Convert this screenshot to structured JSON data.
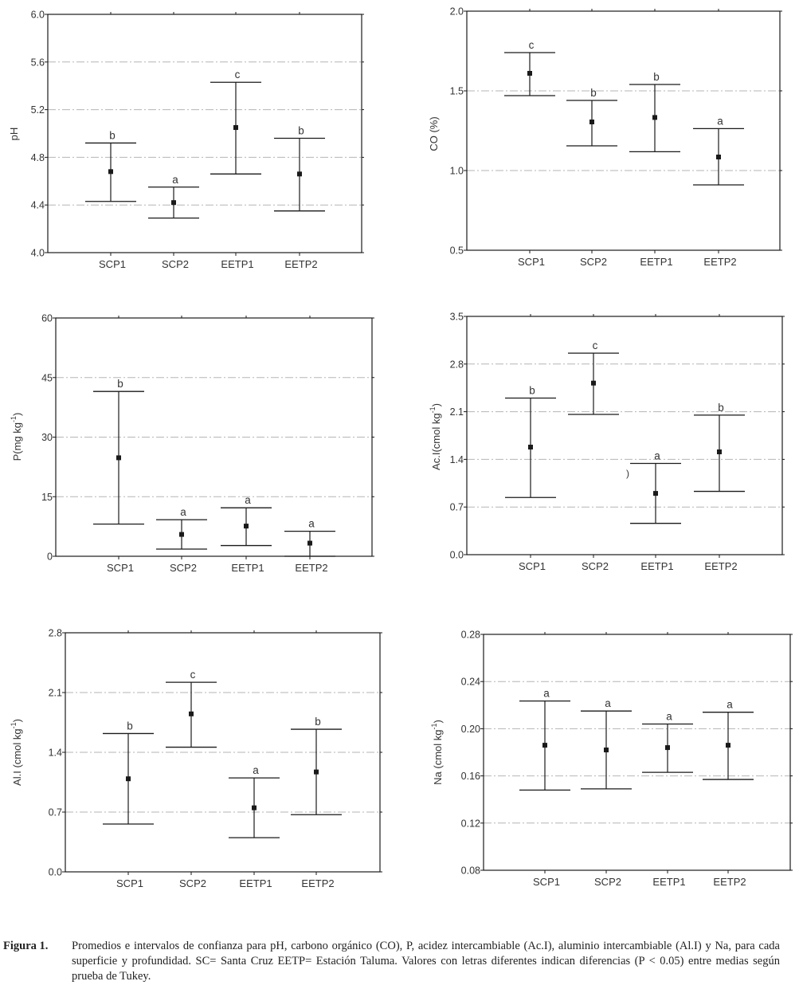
{
  "chart_data": [
    {
      "type": "errorbar",
      "id": "ph",
      "title": "",
      "xlabel": "",
      "ylabel": "pH",
      "ylabel_sup": "",
      "ylabel_suffix": "",
      "ylim": [
        4.0,
        6.0
      ],
      "yticks": [
        "4.0",
        "4.4",
        "4.8",
        "5.2",
        "5.6",
        "6.0"
      ],
      "ytick_values": [
        4.0,
        4.4,
        4.8,
        5.2,
        5.6,
        6.0
      ],
      "grid": true,
      "categories": [
        "SCP1",
        "SCP2",
        "EETP1",
        "EETP2"
      ],
      "means": [
        4.68,
        4.42,
        5.05,
        4.66
      ],
      "upper": [
        4.92,
        4.55,
        5.43,
        4.96
      ],
      "lower": [
        4.43,
        4.29,
        4.66,
        4.35
      ],
      "letters": [
        "b",
        "a",
        "c",
        "b"
      ]
    },
    {
      "type": "errorbar",
      "id": "co",
      "title": "",
      "xlabel": "",
      "ylabel": "CO (%)",
      "ylabel_sup": "",
      "ylabel_suffix": "",
      "ylim": [
        0.5,
        2.0
      ],
      "yticks": [
        "0.5",
        "1.0",
        "1.5",
        "2.0"
      ],
      "ytick_values": [
        0.5,
        1.0,
        1.5,
        2.0
      ],
      "grid": true,
      "categories": [
        "SCP1",
        "SCP2",
        "EETP1",
        "EETP2"
      ],
      "means": [
        1.61,
        1.305,
        1.333,
        1.085
      ],
      "upper": [
        1.74,
        1.44,
        1.54,
        1.263
      ],
      "lower": [
        1.47,
        1.155,
        1.118,
        0.91
      ],
      "letters": [
        "c",
        "b",
        "b",
        "a"
      ]
    },
    {
      "type": "errorbar",
      "id": "p",
      "title": "",
      "xlabel": "",
      "ylabel": "P(mg kg",
      "ylabel_sup": "-1",
      "ylabel_suffix": ")",
      "ylim": [
        0,
        60
      ],
      "yticks": [
        "0",
        "15",
        "30",
        "45",
        "60"
      ],
      "ytick_values": [
        0,
        15,
        30,
        45,
        60
      ],
      "grid": true,
      "categories": [
        "SCP1",
        "SCP2",
        "EETP1",
        "EETP2"
      ],
      "means": [
        24.8,
        5.5,
        7.6,
        3.3
      ],
      "upper": [
        41.5,
        9.2,
        12.2,
        6.3
      ],
      "lower": [
        8.1,
        1.8,
        2.7,
        0.0
      ],
      "letters": [
        "b",
        "a",
        "a",
        "a"
      ]
    },
    {
      "type": "errorbar",
      "id": "aci",
      "title": "",
      "xlabel": "",
      "ylabel": "Ac.I(cmol kg",
      "ylabel_sup": "-1",
      "ylabel_suffix": ")",
      "ylim": [
        0.0,
        3.5
      ],
      "yticks": [
        "0.0",
        "0.7",
        "1.4",
        "2.1",
        "2.8",
        "3.5"
      ],
      "ytick_values": [
        0.0,
        0.7,
        1.4,
        2.1,
        2.8,
        3.5
      ],
      "grid": true,
      "categories": [
        "SCP1",
        "SCP2",
        "EETP1",
        "EETP2"
      ],
      "means": [
        1.58,
        2.52,
        0.9,
        1.51
      ],
      "upper": [
        2.3,
        2.96,
        1.34,
        2.05
      ],
      "lower": [
        0.84,
        2.06,
        0.46,
        0.93
      ],
      "letters": [
        "b",
        "c",
        "a",
        "b"
      ],
      "annotation": ")"
    },
    {
      "type": "errorbar",
      "id": "ali",
      "title": "",
      "xlabel": "",
      "ylabel": "Al.I (cmol kg",
      "ylabel_sup": "-1",
      "ylabel_suffix": ")",
      "ylim": [
        0.0,
        2.8
      ],
      "yticks": [
        "0.0",
        "0.7",
        "1.4",
        "2.1",
        "2.8"
      ],
      "ytick_values": [
        0.0,
        0.7,
        1.4,
        2.1,
        2.8
      ],
      "grid": true,
      "categories": [
        "SCP1",
        "SCP2",
        "EETP1",
        "EETP2"
      ],
      "means": [
        1.09,
        1.85,
        0.75,
        1.17
      ],
      "upper": [
        1.62,
        2.22,
        1.1,
        1.67
      ],
      "lower": [
        0.56,
        1.46,
        0.4,
        0.67
      ],
      "letters": [
        "b",
        "c",
        "a",
        "b"
      ]
    },
    {
      "type": "errorbar",
      "id": "na",
      "title": "",
      "xlabel": "",
      "ylabel": "Na (cmol kg",
      "ylabel_sup": "-1",
      "ylabel_suffix": ")",
      "ylim": [
        0.08,
        0.28
      ],
      "yticks": [
        "0.08",
        "0.12",
        "0.16",
        "0.20",
        "0.24",
        "0.28"
      ],
      "ytick_values": [
        0.08,
        0.12,
        0.16,
        0.2,
        0.24,
        0.28
      ],
      "grid": true,
      "categories": [
        "SCP1",
        "SCP2",
        "EETP1",
        "EETP2"
      ],
      "means": [
        0.186,
        0.182,
        0.184,
        0.186
      ],
      "upper": [
        0.2235,
        0.215,
        0.204,
        0.214
      ],
      "lower": [
        0.148,
        0.149,
        0.163,
        0.157
      ],
      "letters": [
        "a",
        "a",
        "a",
        "a"
      ]
    }
  ],
  "caption": {
    "label": "Figura 1.",
    "text": "Promedios e intervalos de confianza para pH, carbono orgánico (CO), P, acidez intercambiable (Ac.I), aluminio intercambiable (Al.I) y Na, para cada superficie y profundidad. SC= Santa Cruz EETP= Estación Taluma. Valores con letras diferentes indican diferencias (P < 0.05) entre medias según prueba de Tukey."
  },
  "colors": {
    "ink": "#1a1a1a",
    "grid": "#b5b5b5",
    "text": "#333333"
  }
}
